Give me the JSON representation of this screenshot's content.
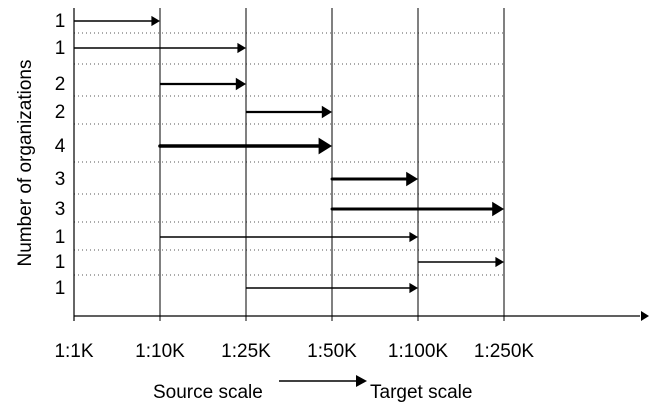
{
  "chart_data": {
    "type": "diagram",
    "ylabel": "Number of organizations",
    "scales": [
      "1:1K",
      "1:10K",
      "1:25K",
      "1:50K",
      "1:100K",
      "1:250K"
    ],
    "rows": [
      {
        "count": "1",
        "from": 0,
        "to": 1,
        "weight": 1
      },
      {
        "count": "1",
        "from": 0,
        "to": 2,
        "weight": 1
      },
      {
        "count": "2",
        "from": 1,
        "to": 2,
        "weight": 2
      },
      {
        "count": "2",
        "from": 2,
        "to": 3,
        "weight": 2
      },
      {
        "count": "4",
        "from": 1,
        "to": 3,
        "weight": 4
      },
      {
        "count": "3",
        "from": 3,
        "to": 4,
        "weight": 3
      },
      {
        "count": "3",
        "from": 3,
        "to": 5,
        "weight": 3
      },
      {
        "count": "1",
        "from": 1,
        "to": 4,
        "weight": 1
      },
      {
        "count": "1",
        "from": 4,
        "to": 5,
        "weight": 1
      },
      {
        "count": "1",
        "from": 2,
        "to": 4,
        "weight": 1
      }
    ],
    "legend": {
      "source_label": "Source scale",
      "target_label": "Target scale"
    }
  }
}
